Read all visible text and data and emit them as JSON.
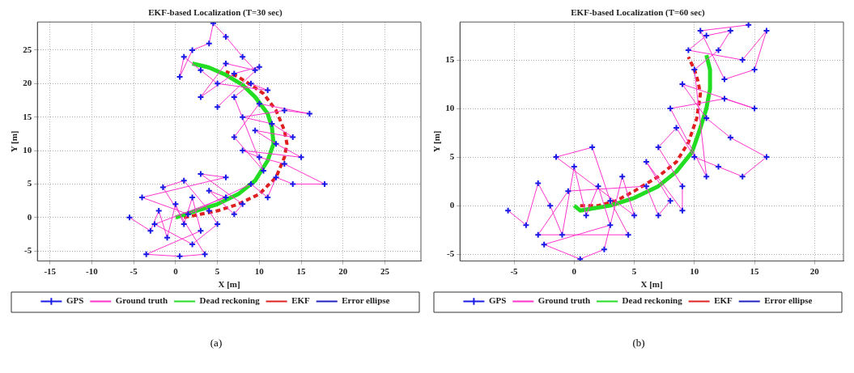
{
  "chart_data": [
    {
      "type": "scatter",
      "title": "EKF-based Localization (T=30 sec)",
      "xlabel": "X [m]",
      "ylabel": "Y [m]",
      "annotations": [
        "(a)"
      ],
      "xlim": [
        -16.5,
        29.3
      ],
      "ylim": [
        -6.5,
        29.2
      ],
      "xticks": [
        -15,
        -10,
        -5,
        0,
        5,
        10,
        15,
        20,
        25
      ],
      "yticks": [
        -5,
        0,
        5,
        10,
        15,
        20,
        25
      ],
      "grid": true,
      "legend": "bottom",
      "series": [
        {
          "name": "GPS",
          "type": "scatter",
          "marker": "cross",
          "color": "#1a1ae6",
          "x": [
            -5.5,
            -3,
            -2,
            -1,
            0,
            1,
            2,
            3,
            -3.5,
            0.5,
            3.5,
            -1.5,
            1,
            4,
            5,
            2,
            -2.5,
            6,
            4,
            7,
            8,
            3,
            6,
            -4,
            1.5,
            9,
            11,
            12,
            14,
            17.8,
            13,
            10,
            8,
            15,
            12,
            9.5,
            14,
            11.5,
            8,
            13,
            16,
            10,
            7,
            10.5,
            7,
            9,
            11,
            5,
            3,
            1,
            0.5,
            2,
            4,
            4.5,
            6,
            8,
            9.5,
            6,
            3,
            7,
            10,
            5
          ],
          "values": [
            0,
            -2,
            1,
            -3,
            2,
            -1,
            3,
            -2,
            -5.5,
            -5.8,
            -5.5,
            4.5,
            5.5,
            1,
            -1,
            -4,
            -1,
            3,
            4,
            0.5,
            2,
            6.5,
            6,
            3,
            0.5,
            5,
            3,
            6,
            5,
            5,
            8,
            9,
            10,
            9,
            11,
            13,
            12,
            14,
            15,
            16,
            15.5,
            17,
            12,
            7,
            18,
            20,
            19,
            20,
            22,
            24,
            21,
            25,
            26,
            29,
            27,
            24,
            22,
            23,
            18,
            21.5,
            22.5,
            16.5
          ]
        },
        {
          "name": "Ground truth",
          "type": "line",
          "marker": "none",
          "line_style": "solid",
          "color": "#ff33cc",
          "x": [
            -5.5,
            -3,
            -2,
            -1,
            0,
            1,
            2,
            3,
            -3.5,
            0.5,
            3.5,
            -1.5,
            1,
            4,
            5,
            2,
            -2.5,
            6,
            4,
            7,
            8,
            3,
            6,
            -4,
            1.5,
            9,
            11,
            12,
            14,
            17.8,
            13,
            10,
            8,
            15,
            12,
            9.5,
            14,
            11.5,
            8,
            13,
            16,
            10,
            7,
            10.5,
            7,
            9,
            11,
            5,
            3,
            1,
            0.5,
            2,
            4,
            4.5,
            6,
            8,
            9.5,
            6,
            3,
            7,
            10,
            5
          ],
          "values": [
            0,
            -2,
            1,
            -3,
            2,
            -1,
            3,
            -2,
            -5.5,
            -5.8,
            -5.5,
            4.5,
            5.5,
            1,
            -1,
            -4,
            -1,
            3,
            4,
            0.5,
            2,
            6.5,
            6,
            3,
            0.5,
            5,
            3,
            6,
            5,
            5,
            8,
            9,
            10,
            9,
            11,
            13,
            12,
            14,
            15,
            16,
            15.5,
            17,
            12,
            7,
            18,
            20,
            19,
            20,
            22,
            24,
            21,
            25,
            26,
            29,
            27,
            24,
            22,
            23,
            18,
            21.5,
            22.5,
            16.5
          ]
        },
        {
          "name": "Dead reckoning",
          "type": "line",
          "marker": "none",
          "line_style": "solid",
          "color": "#22dd22",
          "x": [
            0,
            2,
            5,
            7.5,
            9.5,
            11,
            11.7,
            11.5,
            11,
            9.5,
            8,
            6,
            4,
            2
          ],
          "values": [
            0,
            0.8,
            2,
            3.5,
            5.5,
            8.5,
            11,
            13.5,
            15.5,
            18,
            19.8,
            21.3,
            22.4,
            23
          ]
        },
        {
          "name": "EKF",
          "type": "line",
          "marker": "none",
          "line_style": "dashed",
          "color": "#e02020",
          "x": [
            1,
            3,
            5,
            7.5,
            10,
            12,
            13,
            13.3,
            13,
            12,
            10.5,
            9,
            7.5,
            6
          ],
          "values": [
            0,
            0.5,
            1,
            2,
            3.5,
            6,
            9,
            11,
            13,
            16,
            18.5,
            19.8,
            21,
            21.8
          ]
        },
        {
          "name": "Error ellipse",
          "type": "line",
          "marker": "none",
          "line_style": "solid",
          "color": "#2020c0",
          "x": [
            null
          ],
          "values": [
            null
          ]
        }
      ]
    },
    {
      "type": "scatter",
      "title": "EKF-based Localization (T=60 sec)",
      "xlabel": "X [m]",
      "ylabel": "Y [m]",
      "annotations": [
        "(b)"
      ],
      "xlim": [
        -9.5,
        22.4
      ],
      "ylim": [
        -5.7,
        18.9
      ],
      "xticks": [
        -5,
        0,
        5,
        10,
        15,
        20
      ],
      "yticks": [
        -5,
        0,
        5,
        10,
        15
      ],
      "grid": true,
      "legend": "bottom",
      "series": [
        {
          "name": "GPS",
          "type": "scatter",
          "marker": "cross",
          "color": "#1a1ae6",
          "x": [
            -5.5,
            -4,
            -3,
            -2,
            -1,
            0,
            1,
            2,
            3,
            -2.5,
            0.5,
            2.5,
            4,
            5,
            -1.5,
            1.5,
            3,
            4.5,
            -3,
            -0.5,
            6,
            7,
            8,
            6,
            9,
            9,
            7,
            8.5,
            10,
            12,
            14,
            16,
            13,
            11,
            9,
            15,
            12.5,
            8,
            11,
            10,
            12,
            13,
            11,
            9.5,
            14,
            16,
            15,
            12.5,
            10.5,
            14.5
          ],
          "values": [
            -0.5,
            -2,
            2.3,
            0,
            -3,
            4,
            -1,
            2,
            -2,
            -4,
            -5.5,
            -4.5,
            3,
            -1,
            5,
            6,
            0.5,
            -3,
            -3,
            1.5,
            2,
            -1,
            0.5,
            4.5,
            -0.5,
            2,
            6,
            8,
            5,
            4,
            3,
            5,
            7,
            9,
            12.5,
            10,
            11,
            10,
            3,
            14,
            16,
            18,
            17.5,
            16,
            15,
            18,
            14,
            13,
            18,
            18.6
          ]
        },
        {
          "name": "Ground truth",
          "type": "line",
          "marker": "none",
          "line_style": "solid",
          "color": "#ff33cc",
          "x": [
            -5.5,
            -4,
            -3,
            -2,
            -1,
            0,
            1,
            2,
            3,
            -2.5,
            0.5,
            2.5,
            4,
            5,
            -1.5,
            1.5,
            3,
            4.5,
            -3,
            -0.5,
            6,
            7,
            8,
            6,
            9,
            9,
            7,
            8.5,
            10,
            12,
            14,
            16,
            13,
            11,
            9,
            15,
            12.5,
            8,
            11,
            10,
            12,
            13,
            11,
            9.5,
            14,
            16,
            15,
            12.5,
            10.5,
            14.5
          ],
          "values": [
            -0.5,
            -2,
            2.3,
            0,
            -3,
            4,
            -1,
            2,
            -2,
            -4,
            -5.5,
            -4.5,
            3,
            -1,
            5,
            6,
            0.5,
            -3,
            -3,
            1.5,
            2,
            -1,
            0.5,
            4.5,
            -0.5,
            2,
            6,
            8,
            5,
            4,
            3,
            5,
            7,
            9,
            12.5,
            10,
            11,
            10,
            3,
            14,
            16,
            18,
            17.5,
            16,
            15,
            18,
            14,
            13,
            18,
            18.6
          ]
        },
        {
          "name": "Dead reckoning",
          "type": "line",
          "marker": "none",
          "line_style": "solid",
          "color": "#22dd22",
          "x": [
            0,
            0.5,
            1.5,
            3,
            5,
            7,
            8.5,
            9.8,
            10.5,
            11,
            11.3,
            11.3,
            11
          ],
          "values": [
            0,
            -0.5,
            -0.3,
            0,
            0.8,
            2,
            3.5,
            5.5,
            8,
            10,
            12,
            14,
            15.5
          ]
        },
        {
          "name": "EKF",
          "type": "line",
          "marker": "none",
          "line_style": "dashed",
          "color": "#e02020",
          "x": [
            0.5,
            2,
            3.5,
            5,
            7,
            8.5,
            9.5,
            10.2,
            10.5,
            10.3,
            10,
            9.5
          ],
          "values": [
            0,
            0,
            0.5,
            1.5,
            3,
            4.5,
            6.5,
            9,
            11.5,
            12.8,
            14,
            15.3
          ]
        },
        {
          "name": "Error ellipse",
          "type": "line",
          "marker": "none",
          "line_style": "solid",
          "color": "#2020c0",
          "x": [
            null
          ],
          "values": [
            null
          ]
        }
      ]
    }
  ]
}
